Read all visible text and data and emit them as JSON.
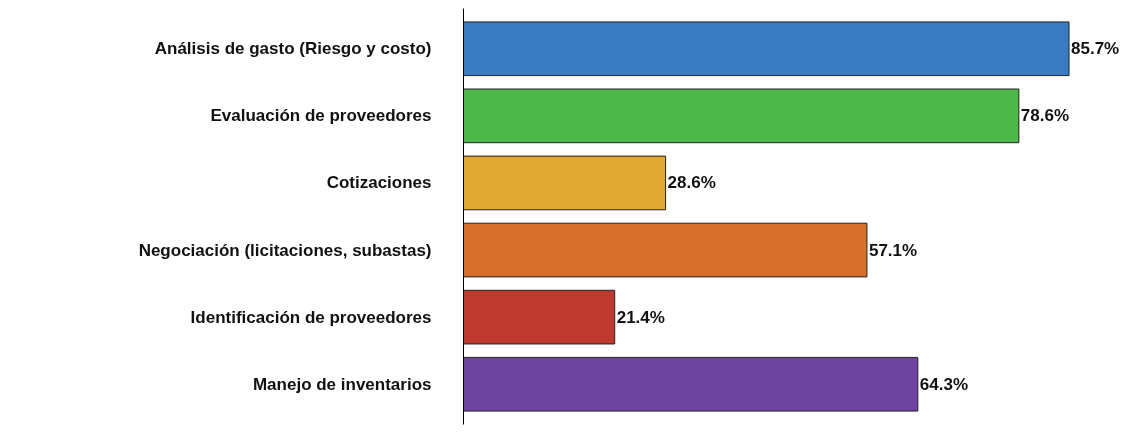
{
  "chart_data": {
    "type": "bar",
    "orientation": "horizontal",
    "categories": [
      "Análisis de gasto (Riesgo y costo)",
      "Evaluación de proveedores",
      "Cotizaciones",
      "Negociación (licitaciones, subastas)",
      "Identificación de proveedores",
      "Manejo de inventarios"
    ],
    "values": [
      85.7,
      78.6,
      28.6,
      57.1,
      21.4,
      64.3
    ],
    "value_labels": [
      "85.7%",
      "78.6%",
      "28.6%",
      "57.1%",
      "21.4%",
      "64.3%"
    ],
    "colors": [
      "#3a7cc4",
      "#4cb84a",
      "#e0a830",
      "#d9702a",
      "#c0392f",
      "#6e44a0"
    ],
    "tick_labels": "y",
    "grid": false
  }
}
